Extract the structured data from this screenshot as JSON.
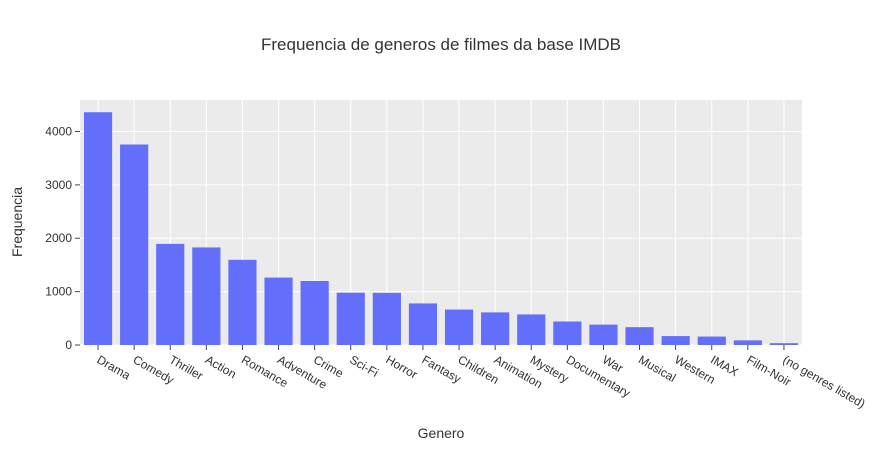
{
  "chart_data": {
    "type": "bar",
    "title": "Frequencia de generos de filmes da base IMDB",
    "xlabel": "Genero",
    "ylabel": "Frequencia",
    "categories": [
      "Drama",
      "Comedy",
      "Thriller",
      "Action",
      "Romance",
      "Adventure",
      "Crime",
      "Sci-Fi",
      "Horror",
      "Fantasy",
      "Children",
      "Animation",
      "Mystery",
      "Documentary",
      "War",
      "Musical",
      "Western",
      "IMAX",
      "Film-Noir",
      "(no genres listed)"
    ],
    "values": [
      4361,
      3756,
      1894,
      1828,
      1596,
      1263,
      1199,
      980,
      978,
      779,
      664,
      611,
      573,
      440,
      382,
      334,
      167,
      158,
      87,
      34
    ],
    "yticks": [
      0,
      1000,
      2000,
      3000,
      4000
    ],
    "ytick_labels": [
      "0",
      "1000",
      "2000",
      "3000",
      "4000"
    ],
    "ylim": [
      0,
      4590
    ],
    "grid": true,
    "bar_color": "#636efa",
    "plot_bg": "#ebebeb"
  }
}
